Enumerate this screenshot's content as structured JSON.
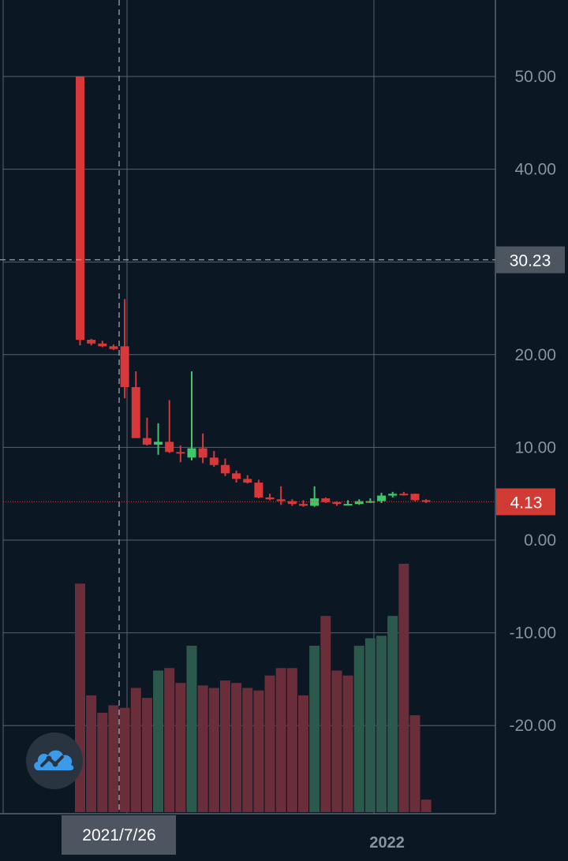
{
  "chart_data": {
    "type": "candlestick",
    "y_axis": {
      "ticks": [
        "50.00",
        "40.00",
        "30.00",
        "20.00",
        "10.00",
        "0.00",
        "-10.00",
        "-20.00"
      ],
      "tick_values": [
        50,
        40,
        30,
        20,
        10,
        0,
        -10,
        -20
      ],
      "ylim": [
        -29.5,
        57.3
      ]
    },
    "time_axis": {
      "labels": [
        {
          "text": "2021/7/26",
          "bar_index": 3.5,
          "style": "crosshair-badge"
        },
        {
          "text": "2022",
          "bar_index": 27.5,
          "style": "plain"
        }
      ]
    },
    "last_price": {
      "value": 4.13,
      "label": "4.13",
      "color": "#d23a34"
    },
    "crosshair": {
      "value": 30.23,
      "label": "30.23",
      "bar_index": 3.5
    },
    "colors": {
      "up": "#3dc86a",
      "down": "#d8383a",
      "vol_up": "#2b5a4c",
      "vol_down": "#6a2e3a",
      "grid": "#5a626c"
    },
    "candles": [
      {
        "open": 50.0,
        "high": 50.0,
        "low": 21.0,
        "close": 21.6
      },
      {
        "open": 21.6,
        "high": 21.7,
        "low": 21.0,
        "close": 21.2
      },
      {
        "open": 21.2,
        "high": 21.5,
        "low": 20.8,
        "close": 20.9
      },
      {
        "open": 20.9,
        "high": 21.1,
        "low": 20.5,
        "close": 20.6
      },
      {
        "open": 20.9,
        "high": 26.0,
        "low": 15.3,
        "close": 16.5
      },
      {
        "open": 16.5,
        "high": 18.2,
        "low": 11.0,
        "close": 11.0
      },
      {
        "open": 11.0,
        "high": 13.2,
        "low": 10.2,
        "close": 10.3
      },
      {
        "open": 10.3,
        "high": 12.6,
        "low": 9.2,
        "close": 10.6
      },
      {
        "open": 10.6,
        "high": 15.1,
        "low": 9.4,
        "close": 9.5
      },
      {
        "open": 9.5,
        "high": 10.2,
        "low": 8.4,
        "close": 9.4
      },
      {
        "open": 8.9,
        "high": 18.2,
        "low": 8.6,
        "close": 9.9
      },
      {
        "open": 9.9,
        "high": 11.5,
        "low": 8.3,
        "close": 8.9
      },
      {
        "open": 8.9,
        "high": 9.6,
        "low": 7.9,
        "close": 8.1
      },
      {
        "open": 8.1,
        "high": 8.8,
        "low": 6.9,
        "close": 7.2
      },
      {
        "open": 7.2,
        "high": 7.5,
        "low": 6.2,
        "close": 6.6
      },
      {
        "open": 6.6,
        "high": 7.0,
        "low": 6.1,
        "close": 6.2
      },
      {
        "open": 6.2,
        "high": 6.5,
        "low": 4.5,
        "close": 4.6
      },
      {
        "open": 4.6,
        "high": 5.0,
        "low": 4.3,
        "close": 4.4
      },
      {
        "open": 4.4,
        "high": 5.8,
        "low": 3.8,
        "close": 4.2
      },
      {
        "open": 4.2,
        "high": 4.4,
        "low": 3.7,
        "close": 3.9
      },
      {
        "open": 3.9,
        "high": 4.3,
        "low": 3.6,
        "close": 3.7
      },
      {
        "open": 3.7,
        "high": 5.8,
        "low": 3.6,
        "close": 4.5
      },
      {
        "open": 4.5,
        "high": 4.6,
        "low": 4.0,
        "close": 4.1
      },
      {
        "open": 4.1,
        "high": 4.2,
        "low": 3.7,
        "close": 3.9
      },
      {
        "open": 3.9,
        "high": 4.3,
        "low": 3.8,
        "close": 3.9
      },
      {
        "open": 3.9,
        "high": 4.4,
        "low": 3.8,
        "close": 4.2
      },
      {
        "open": 4.2,
        "high": 4.5,
        "low": 4.0,
        "close": 4.2
      },
      {
        "open": 4.2,
        "high": 5.1,
        "low": 4.0,
        "close": 4.8
      },
      {
        "open": 4.8,
        "high": 5.2,
        "low": 4.6,
        "close": 5.0
      },
      {
        "open": 5.0,
        "high": 5.2,
        "low": 4.8,
        "close": 4.9
      },
      {
        "open": 5.0,
        "high": 5.0,
        "low": 4.2,
        "close": 4.3
      },
      {
        "open": 4.3,
        "high": 4.4,
        "low": 4.0,
        "close": 4.13
      }
    ],
    "volume": {
      "directions": [
        "d",
        "d",
        "d",
        "d",
        "d",
        "d",
        "d",
        "u",
        "d",
        "d",
        "u",
        "d",
        "d",
        "d",
        "d",
        "d",
        "d",
        "d",
        "d",
        "d",
        "d",
        "u",
        "d",
        "d",
        "d",
        "u",
        "u",
        "u",
        "u",
        "d",
        "d",
        "d"
      ],
      "relative_heights": [
        0.92,
        0.47,
        0.4,
        0.43,
        0.42,
        0.5,
        0.46,
        0.57,
        0.58,
        0.52,
        0.67,
        0.51,
        0.5,
        0.53,
        0.52,
        0.5,
        0.49,
        0.55,
        0.58,
        0.58,
        0.47,
        0.67,
        0.79,
        0.57,
        0.55,
        0.67,
        0.7,
        0.71,
        0.79,
        1.0,
        0.39,
        0.05
      ]
    }
  },
  "icons": {
    "logo": "cloud-chart-icon"
  }
}
